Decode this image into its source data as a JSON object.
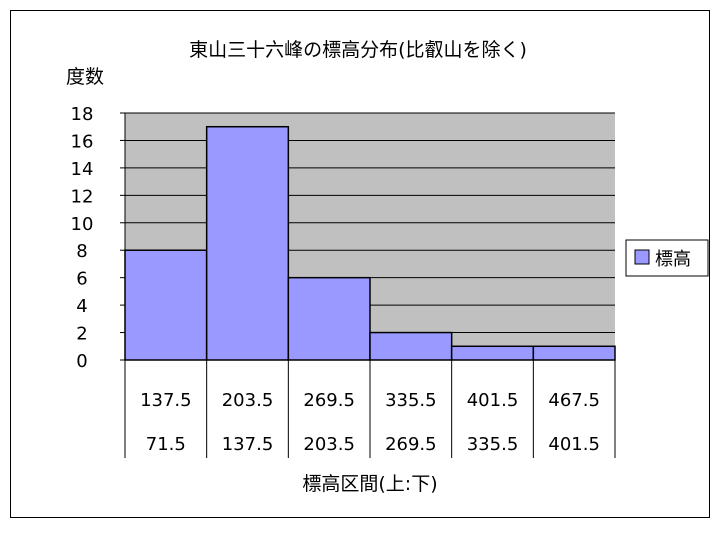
{
  "chart_data": {
    "type": "bar",
    "title": "東山三十六峰の標高分布(比叡山を除く)",
    "ylabel": "度数",
    "xlabel": "標高区間(上:下)",
    "ylim": [
      0,
      18
    ],
    "yticks": [
      0,
      2,
      4,
      6,
      8,
      10,
      12,
      14,
      16,
      18
    ],
    "categories_upper": [
      "137.5",
      "203.5",
      "269.5",
      "335.5",
      "401.5",
      "467.5"
    ],
    "categories_lower": [
      "71.5",
      "137.5",
      "203.5",
      "269.5",
      "335.5",
      "401.5"
    ],
    "series": [
      {
        "name": "標高",
        "values": [
          8,
          17,
          6,
          2,
          1,
          1
        ],
        "color": "#9999ff"
      }
    ],
    "plot_background": "#c0c0c0",
    "grid": true,
    "legend_position": "right"
  }
}
